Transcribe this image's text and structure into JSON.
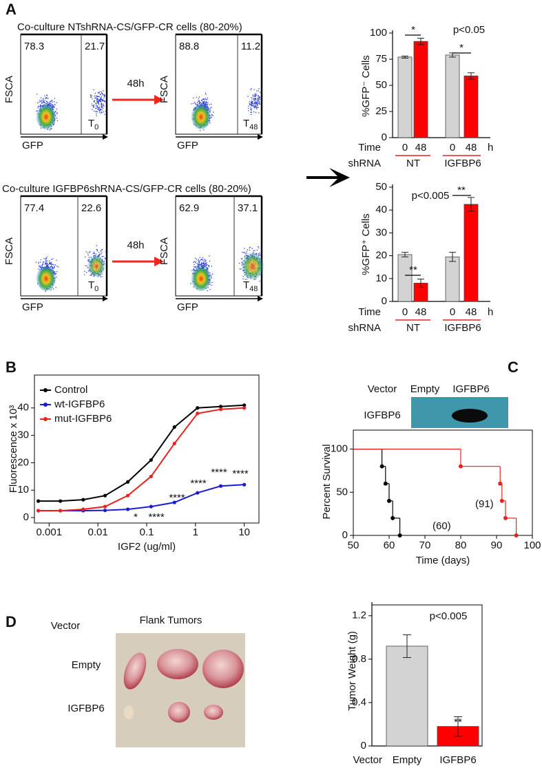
{
  "panel_labels": [
    "A",
    "B",
    "C",
    "D"
  ],
  "flow": {
    "y_label": "FSCA",
    "x_label": "GFP",
    "rows": [
      {
        "title": "Co-culture NTshRNA-CS/GFP-CR cells (80-20%)",
        "arrow_label": "48h",
        "plots": [
          {
            "left": 78.3,
            "right": 21.7,
            "time": "T",
            "time_sub": "0"
          },
          {
            "left": 88.8,
            "right": 11.2,
            "time": "T",
            "time_sub": "48"
          }
        ]
      },
      {
        "title": "Co-culture IGFBP6shRNA-CS/GFP-CR cells (80-20%)",
        "arrow_label": "48h",
        "plots": [
          {
            "left": 77.4,
            "right": 22.6,
            "time": "T",
            "time_sub": "0"
          },
          {
            "left": 62.9,
            "right": 37.1,
            "time": "T",
            "time_sub": "48"
          }
        ]
      }
    ]
  },
  "chart_data": [
    {
      "type": "bar",
      "ylabel": "%GFP⁻ Cells",
      "row_labels": [
        "Time",
        "shRNA"
      ],
      "unit": "h",
      "categories": [
        "0",
        "48",
        "0",
        "48"
      ],
      "groups": [
        "NT",
        "IGFBP6"
      ],
      "values": [
        77,
        92,
        79,
        59
      ],
      "errors": [
        1,
        3,
        2,
        3
      ],
      "colors": [
        "#d3d3d3",
        "#ff0000",
        "#d3d3d3",
        "#ff0000"
      ],
      "ylim": [
        0,
        100
      ],
      "yticks": [
        0,
        25,
        50,
        75,
        100
      ],
      "annotations": [
        "p<0.05",
        "*",
        "*"
      ]
    },
    {
      "type": "bar",
      "ylabel": "%GFP⁺ Cells",
      "row_labels": [
        "Time",
        "shRNA"
      ],
      "unit": "h",
      "categories": [
        "0",
        "48",
        "0",
        "48"
      ],
      "groups": [
        "NT",
        "IGFBP6"
      ],
      "values": [
        20.5,
        8,
        19.5,
        42.5
      ],
      "errors": [
        1,
        1.8,
        2,
        3
      ],
      "colors": [
        "#d3d3d3",
        "#ff0000",
        "#d3d3d3",
        "#ff0000"
      ],
      "ylim": [
        0,
        50
      ],
      "yticks": [
        0,
        10,
        20,
        30,
        40,
        50
      ],
      "annotations": [
        "p<0.005",
        "**",
        "**"
      ]
    },
    {
      "type": "line",
      "xscale": "log",
      "xlabel": "IGF2 (ug/ml)",
      "ylabel": "Fluorescence x 10³",
      "x": [
        0.0006,
        0.0017,
        0.005,
        0.014,
        0.041,
        0.123,
        0.37,
        1.1,
        3.3,
        10
      ],
      "series": [
        {
          "name": "Control",
          "color": "#000000",
          "values": [
            6,
            6,
            6.5,
            8,
            13,
            21,
            33,
            40,
            40.5,
            41
          ]
        },
        {
          "name": "wt-IGFBP6",
          "color": "#1a1ad6",
          "values": [
            2.5,
            2.5,
            2.5,
            2.6,
            3,
            4,
            5.5,
            9,
            11.5,
            12
          ]
        },
        {
          "name": "mut-IGFBP6",
          "color": "#e8221e",
          "values": [
            2.5,
            2.5,
            3,
            4,
            8,
            15,
            27,
            38,
            39.5,
            40
          ]
        }
      ],
      "xlim": [
        0.0005,
        20
      ],
      "xticks": [
        0.001,
        0.01,
        0.1,
        1,
        10
      ],
      "ylim": [
        -2,
        52
      ],
      "yticks": [
        0,
        10,
        20,
        30,
        40
      ],
      "legend": "upper left",
      "annotations": [
        "*",
        "****",
        "****",
        "****",
        "****",
        "****"
      ]
    },
    {
      "type": "step",
      "xlabel": "Time (days)",
      "ylabel": "Percent Survival",
      "series": [
        {
          "color": "#000000",
          "x": [
            50,
            58,
            59,
            60,
            61,
            63
          ],
          "values": [
            100,
            80,
            60,
            40,
            20,
            0
          ]
        },
        {
          "color": "#e8221e",
          "x": [
            50,
            80,
            91,
            91.5,
            92.5,
            95.5
          ],
          "values": [
            100,
            80,
            60,
            40,
            20,
            0
          ]
        }
      ],
      "xlim": [
        50,
        100
      ],
      "xticks": [
        50,
        60,
        70,
        80,
        90,
        100
      ],
      "ylim": [
        0,
        122
      ],
      "yticks": [
        0,
        50,
        100
      ],
      "annotations": [
        "(60)",
        "(91)"
      ]
    },
    {
      "type": "bar",
      "ylabel": "Tumor Weight (g)",
      "xlabel": "Vector",
      "categories": [
        "Empty",
        "IGFBP6"
      ],
      "values": [
        0.92,
        0.18
      ],
      "errors": [
        0.105,
        0.09
      ],
      "colors": [
        "#d3d3d3",
        "#ff0000"
      ],
      "ylim": [
        0,
        1.3
      ],
      "yticks": [
        0,
        0.4,
        0.8,
        1.2
      ],
      "annotations": [
        "p<0.005",
        "**"
      ]
    }
  ],
  "blot": {
    "vector_label": "Vector",
    "columns": [
      "Empty",
      "IGFBP6"
    ],
    "row_label": "IGFBP6"
  },
  "tumors": {
    "vector_label": "Vector",
    "title": "Flank Tumors",
    "rows": [
      "Empty",
      "IGFBP6"
    ]
  }
}
